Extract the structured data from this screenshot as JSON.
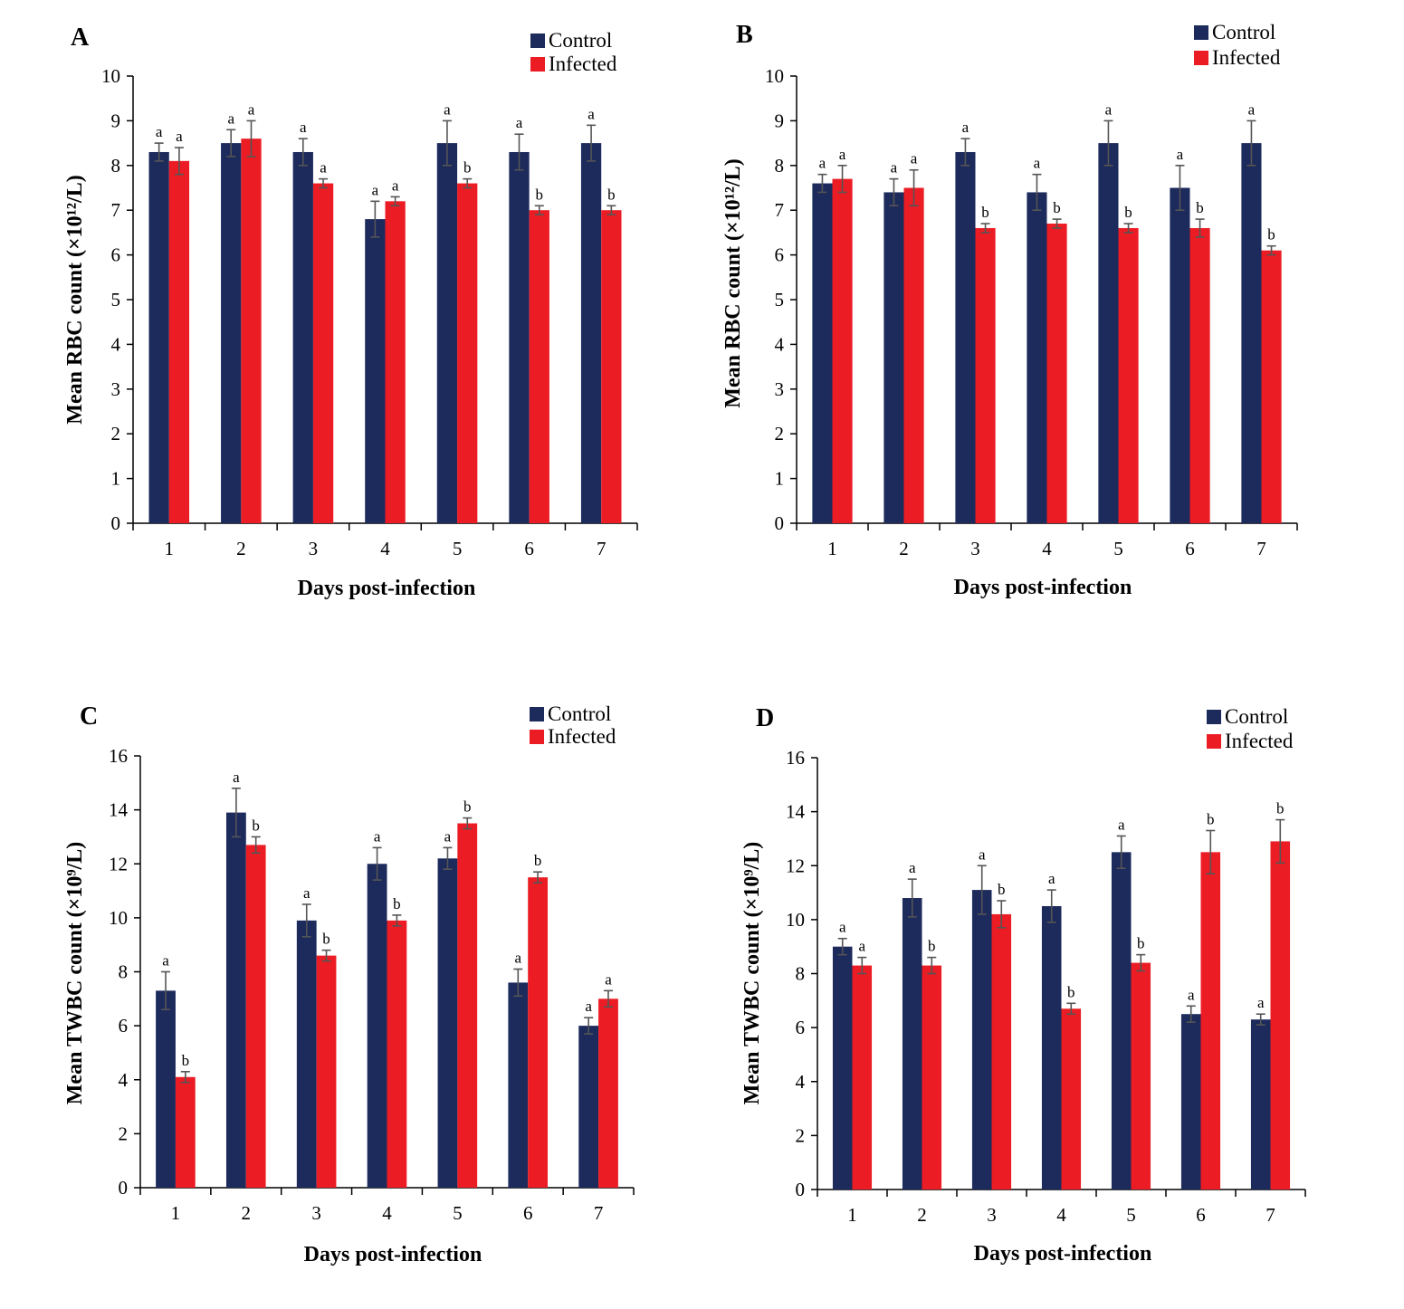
{
  "colors": {
    "control": "#1c2a5c",
    "infected": "#ec1c24",
    "error_bar": "#555555",
    "axis": "#000000"
  },
  "chart_data": [
    {
      "type": "bar",
      "panel": "A",
      "categories": [
        "1",
        "2",
        "3",
        "4",
        "5",
        "6",
        "7"
      ],
      "xlabel": "Days post-infection",
      "ylabel": "Mean RBC count (×10¹²/L)",
      "ylim": [
        0,
        10
      ],
      "yticks": [
        "0",
        "1",
        "2",
        "3",
        "4",
        "5",
        "6",
        "7",
        "8",
        "9",
        "10"
      ],
      "legend_position": "top-right",
      "series": [
        {
          "name": "Control",
          "values": [
            8.3,
            8.5,
            8.3,
            6.8,
            8.5,
            8.3,
            8.5
          ],
          "errors": [
            0.2,
            0.3,
            0.3,
            0.4,
            0.5,
            0.4,
            0.4
          ],
          "letters": [
            "a",
            "a",
            "a",
            "a",
            "a",
            "a",
            "a"
          ]
        },
        {
          "name": "Infected",
          "values": [
            8.1,
            8.6,
            7.6,
            7.2,
            7.6,
            7.0,
            7.0
          ],
          "errors": [
            0.3,
            0.4,
            0.1,
            0.1,
            0.1,
            0.1,
            0.1
          ],
          "letters": [
            "a",
            "a",
            "a",
            "a",
            "b",
            "b",
            "b"
          ]
        }
      ]
    },
    {
      "type": "bar",
      "panel": "B",
      "categories": [
        "1",
        "2",
        "3",
        "4",
        "5",
        "6",
        "7"
      ],
      "xlabel": "Days post-infection",
      "ylabel": "Mean RBC count (×10¹²/L)",
      "ylim": [
        0,
        10
      ],
      "yticks": [
        "0",
        "1",
        "2",
        "3",
        "4",
        "5",
        "6",
        "7",
        "8",
        "9",
        "10"
      ],
      "legend_position": "top-right",
      "series": [
        {
          "name": "Control",
          "values": [
            7.6,
            7.4,
            8.3,
            7.4,
            8.5,
            7.5,
            8.5
          ],
          "errors": [
            0.2,
            0.3,
            0.3,
            0.4,
            0.5,
            0.5,
            0.5
          ],
          "letters": [
            "a",
            "a",
            "a",
            "a",
            "a",
            "a",
            "a"
          ]
        },
        {
          "name": "Infected",
          "values": [
            7.7,
            7.5,
            6.6,
            6.7,
            6.6,
            6.6,
            6.1
          ],
          "errors": [
            0.3,
            0.4,
            0.1,
            0.1,
            0.1,
            0.2,
            0.1
          ],
          "letters": [
            "a",
            "a",
            "b",
            "b",
            "b",
            "b",
            "b"
          ]
        }
      ]
    },
    {
      "type": "bar",
      "panel": "C",
      "categories": [
        "1",
        "2",
        "3",
        "4",
        "5",
        "6",
        "7"
      ],
      "xlabel": "Days post-infection",
      "ylabel": "Mean TWBC count (×10⁹/L)",
      "ylim": [
        0,
        16
      ],
      "yticks": [
        "0",
        "2",
        "4",
        "6",
        "8",
        "10",
        "12",
        "14",
        "16"
      ],
      "legend_position": "top-right",
      "series": [
        {
          "name": "Control",
          "values": [
            7.3,
            13.9,
            9.9,
            12.0,
            12.2,
            7.6,
            6.0
          ],
          "errors": [
            0.7,
            0.9,
            0.6,
            0.6,
            0.4,
            0.5,
            0.3
          ],
          "letters": [
            "a",
            "a",
            "a",
            "a",
            "a",
            "a",
            "a"
          ]
        },
        {
          "name": "Infected",
          "values": [
            4.1,
            12.7,
            8.6,
            9.9,
            13.5,
            11.5,
            7.0
          ],
          "errors": [
            0.2,
            0.3,
            0.2,
            0.2,
            0.2,
            0.2,
            0.3
          ],
          "letters": [
            "b",
            "b",
            "b",
            "b",
            "b",
            "b",
            "a"
          ]
        }
      ]
    },
    {
      "type": "bar",
      "panel": "D",
      "categories": [
        "1",
        "2",
        "3",
        "4",
        "5",
        "6",
        "7"
      ],
      "xlabel": "Days post-infection",
      "ylabel": "Mean TWBC count (×10⁹/L)",
      "ylim": [
        0,
        16
      ],
      "yticks": [
        "0",
        "2",
        "4",
        "6",
        "8",
        "10",
        "12",
        "14",
        "16"
      ],
      "legend_position": "top-right",
      "series": [
        {
          "name": "Control",
          "values": [
            9.0,
            10.8,
            11.1,
            10.5,
            12.5,
            6.5,
            6.3
          ],
          "errors": [
            0.3,
            0.7,
            0.9,
            0.6,
            0.6,
            0.3,
            0.2
          ],
          "letters": [
            "a",
            "a",
            "a",
            "a",
            "a",
            "a",
            "a"
          ]
        },
        {
          "name": "Infected",
          "values": [
            8.3,
            8.3,
            10.2,
            6.7,
            8.4,
            12.5,
            12.9
          ],
          "errors": [
            0.3,
            0.3,
            0.5,
            0.2,
            0.3,
            0.8,
            0.8
          ],
          "letters": [
            "a",
            "b",
            "b",
            "b",
            "b",
            "b",
            "b"
          ]
        }
      ]
    }
  ]
}
